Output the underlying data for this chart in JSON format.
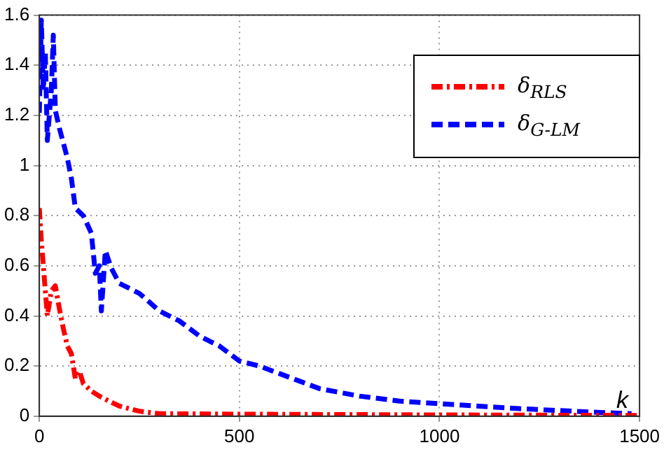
{
  "chart_data": {
    "type": "line",
    "xlabel": "k",
    "xlim": [
      0,
      1500
    ],
    "xticks": [
      0,
      500,
      1000,
      1500
    ],
    "ylim": [
      0,
      1.6
    ],
    "yticks": [
      0,
      0.2,
      0.4,
      0.6,
      0.8,
      1,
      1.2,
      1.4,
      1.6
    ],
    "grid": true,
    "legend": "top right",
    "marker": "none",
    "series": [
      {
        "name": "δ$_{RLS}$",
        "color": "#ff0000",
        "line_style": "dashdot",
        "x": [
          0,
          5,
          10,
          15,
          20,
          30,
          40,
          50,
          60,
          70,
          80,
          90,
          100,
          110,
          130,
          150,
          200,
          250,
          300,
          500,
          1000,
          1500
        ],
        "values": [
          0.83,
          0.7,
          0.6,
          0.5,
          0.4,
          0.5,
          0.52,
          0.43,
          0.35,
          0.28,
          0.25,
          0.15,
          0.18,
          0.13,
          0.1,
          0.08,
          0.04,
          0.02,
          0.01,
          0.008,
          0.005,
          0.003
        ]
      },
      {
        "name": "δ$_{G-LM}$",
        "color": "#0000ff",
        "line_style": "dashed",
        "x": [
          0,
          5,
          10,
          15,
          20,
          30,
          35,
          40,
          50,
          70,
          80,
          90,
          110,
          130,
          140,
          150,
          155,
          165,
          180,
          200,
          250,
          300,
          350,
          400,
          450,
          500,
          550,
          600,
          650,
          700,
          800,
          900,
          1000,
          1200,
          1400,
          1480
        ],
        "values": [
          1.21,
          1.58,
          1.3,
          1.45,
          1.1,
          1.3,
          1.52,
          1.22,
          1.15,
          1.03,
          0.95,
          0.83,
          0.8,
          0.73,
          0.57,
          0.6,
          0.42,
          0.66,
          0.59,
          0.53,
          0.49,
          0.42,
          0.38,
          0.32,
          0.28,
          0.22,
          0.2,
          0.17,
          0.14,
          0.11,
          0.08,
          0.06,
          0.05,
          0.03,
          0.015,
          0.01
        ]
      }
    ]
  }
}
